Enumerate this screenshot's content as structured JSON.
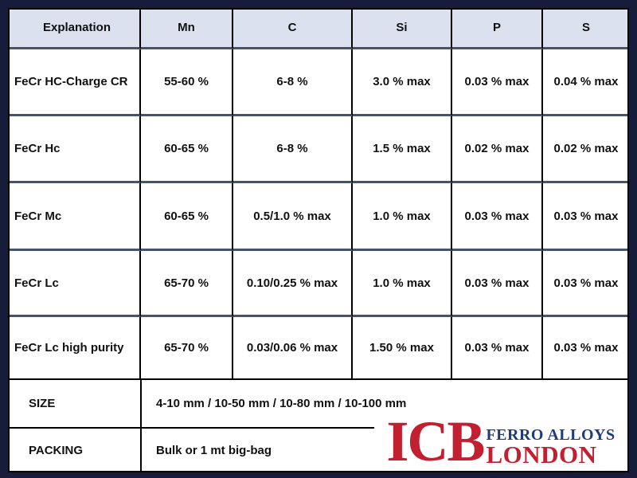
{
  "colors": {
    "page_background": "#171c3a",
    "header_fill": "#dce1f0",
    "row_divider": "#44546a",
    "cell_border": "#000000",
    "logo_red": "#c22030",
    "logo_navy": "#1d3d7a"
  },
  "table": {
    "headers": [
      "Explanation",
      "Mn",
      "C",
      "Si",
      "P",
      "S"
    ],
    "rows": [
      [
        "FeCr HC-Charge CR",
        "55-60 %",
        "6-8 %",
        "3.0 % max",
        "0.03 % max",
        "0.04 % max"
      ],
      [
        "FeCr Hc",
        "60-65 %",
        "6-8 %",
        "1.5 % max",
        "0.02 % max",
        "0.02 % max"
      ],
      [
        "FeCr Mc",
        "60-65 %",
        "0.5/1.0 % max",
        "1.0 % max",
        "0.03 % max",
        "0.03 % max"
      ],
      [
        "FeCr Lc",
        "65-70 %",
        "0.10/0.25 % max",
        "1.0 % max",
        "0.03 % max",
        "0.03 % max"
      ],
      [
        "FeCr Lc high purity",
        "65-70 %",
        "0.03/0.06 % max",
        "1.50 % max",
        "0.03 % max",
        "0.03 % max"
      ]
    ]
  },
  "footer": {
    "size": {
      "label": "SIZE",
      "value": "4-10 mm / 10-50 mm / 10-80 mm / 10-100 mm"
    },
    "packing": {
      "label": "PACKING",
      "value": "Bulk or 1 mt big-bag"
    }
  },
  "logo": {
    "monogram": "ICB",
    "line1": "FERRO ALLOYS",
    "line2": "LONDON"
  }
}
